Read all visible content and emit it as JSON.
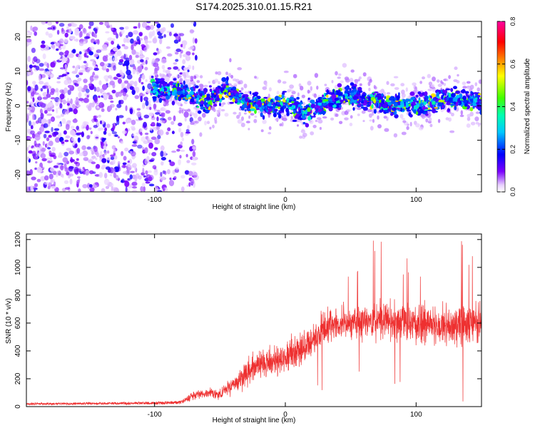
{
  "title": "S174.2025.310.01.15.R21",
  "chart_data": [
    {
      "type": "heatmap",
      "name": "spectrogram",
      "xlabel": "Height of straight line (km)",
      "ylabel": "Frequency (Hz)",
      "xlim": [
        -198,
        150
      ],
      "ylim": [
        -25,
        24.5
      ],
      "xticks": [
        -100,
        0,
        100
      ],
      "yticks": [
        -20,
        -10,
        0,
        10,
        20
      ],
      "ytick_labels": [
        "-20",
        "-10",
        "0",
        "10",
        "20"
      ],
      "xtick_labels": [
        "-100",
        "0",
        "100"
      ],
      "colorbar": {
        "label": "Normalized spectral amplitude",
        "range": [
          0.0,
          0.8
        ],
        "ticks": [
          0.0,
          0.2,
          0.4,
          0.6,
          0.8
        ],
        "tick_labels": [
          "0.0",
          "0.2",
          "0.4",
          "0.6",
          "0.8"
        ],
        "colors": [
          "#ffffff",
          "#7a00ff",
          "#0000ff",
          "#00ffff",
          "#00ff00",
          "#ffff00",
          "#ff8000",
          "#ff0000",
          "#ff00a0"
        ]
      },
      "description": "Noise region (x < -75 km) shows scattered purple blobs across all frequencies; a signal band of blobs centered near 0 Hz (about 3 to 6 Hz wide) runs from about -100 km to 150 km with peaks near 0.5-0.7 normalized amplitude.",
      "band": [
        [
          -100,
          5
        ],
        [
          -80,
          4
        ],
        [
          -60,
          1
        ],
        [
          -45,
          5
        ],
        [
          -30,
          1
        ],
        [
          -15,
          0
        ],
        [
          0,
          1
        ],
        [
          15,
          -2
        ],
        [
          30,
          1
        ],
        [
          45,
          3
        ],
        [
          60,
          2
        ],
        [
          80,
          0
        ],
        [
          100,
          0
        ],
        [
          120,
          2
        ],
        [
          150,
          1
        ]
      ]
    },
    {
      "type": "line",
      "name": "snr",
      "xlabel": "Height of straight line (km)",
      "ylabel": "SNR (10 * v/v)",
      "xlim": [
        -198,
        150
      ],
      "ylim": [
        0,
        1240
      ],
      "xticks": [
        -100,
        0,
        100
      ],
      "xtick_labels": [
        "-100",
        "0",
        "100"
      ],
      "yticks": [
        0,
        200,
        400,
        600,
        800,
        1000,
        1200
      ],
      "ytick_labels": [
        "0",
        "200",
        "400",
        "600",
        "800",
        "1000",
        "1200"
      ],
      "series": [
        {
          "name": "SNR",
          "color": "#ee3030",
          "trend_x": [
            -198,
            -150,
            -100,
            -80,
            -70,
            -60,
            -50,
            -40,
            -30,
            -20,
            -10,
            0,
            10,
            20,
            30,
            40,
            60,
            80,
            100,
            120,
            150
          ],
          "trend_y": [
            20,
            22,
            25,
            30,
            80,
            100,
            90,
            150,
            230,
            310,
            330,
            360,
            400,
            480,
            560,
            600,
            610,
            620,
            600,
            580,
            600
          ],
          "spread_y": [
            10,
            10,
            12,
            15,
            40,
            50,
            45,
            90,
            130,
            160,
            170,
            180,
            170,
            170,
            170,
            180,
            190,
            200,
            190,
            200,
            210
          ]
        }
      ]
    }
  ]
}
